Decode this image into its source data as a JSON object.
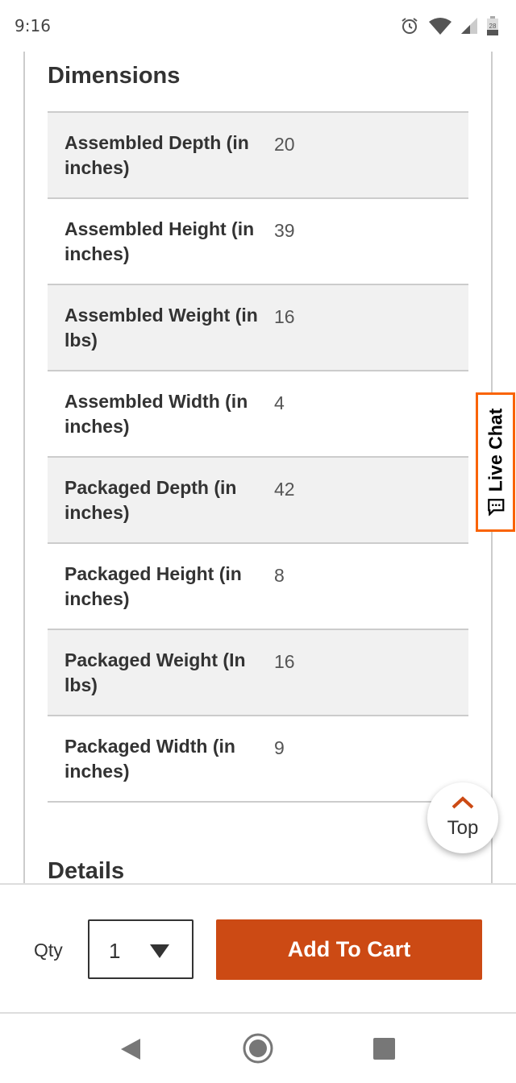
{
  "status_bar": {
    "time": "9:16",
    "battery": "28"
  },
  "section": {
    "title": "Dimensions",
    "next_title": "Details"
  },
  "rows": [
    {
      "label": "Assembled Depth (in inches)",
      "value": "20"
    },
    {
      "label": "Assembled Height (in inches)",
      "value": "39"
    },
    {
      "label": "Assembled Weight (in lbs)",
      "value": "16"
    },
    {
      "label": "Assembled Width (in inches)",
      "value": "4"
    },
    {
      "label": "Packaged Depth (in inches)",
      "value": "42"
    },
    {
      "label": "Packaged Height (in inches)",
      "value": "8"
    },
    {
      "label": "Packaged Weight (In lbs)",
      "value": "16"
    },
    {
      "label": "Packaged Width (in inches)",
      "value": "9"
    }
  ],
  "live_chat": {
    "label": "Live Chat",
    "color": "#f96302"
  },
  "top_button": {
    "label": "Top"
  },
  "cart_bar": {
    "qty_label": "Qty",
    "qty_value": "1",
    "add_label": "Add To Cart",
    "accent": "#cc4a14"
  }
}
